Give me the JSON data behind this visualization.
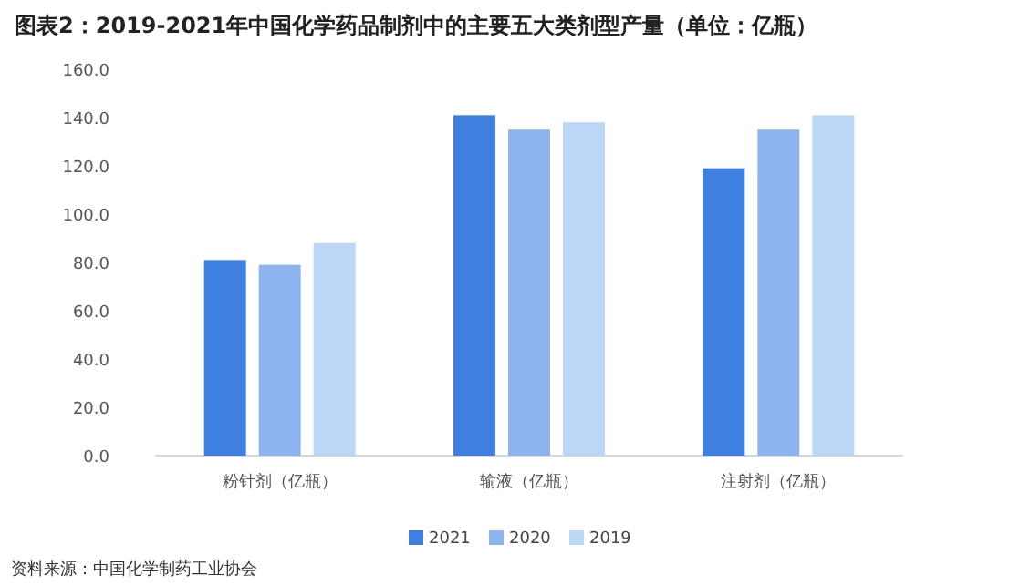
{
  "chart_data": {
    "type": "bar",
    "title": "图表2：2019-2021年中国化学药品制剂中的主要五大类剂型产量（单位：亿瓶）",
    "categories": [
      "粉针剂（亿瓶）",
      "输液（亿瓶）",
      "注射剂（亿瓶）"
    ],
    "series": [
      {
        "name": "2021",
        "color": "#3f7fdf",
        "values": [
          81,
          141,
          119
        ]
      },
      {
        "name": "2020",
        "color": "#8db4ee",
        "values": [
          79,
          135,
          135
        ]
      },
      {
        "name": "2019",
        "color": "#bcd6f8",
        "values": [
          88,
          138,
          141
        ]
      }
    ],
    "ylim": [
      0,
      160
    ],
    "yticks": [
      {
        "value": 0,
        "label": "0.0"
      },
      {
        "value": 20,
        "label": "20.0"
      },
      {
        "value": 40,
        "label": "40.0"
      },
      {
        "value": 60,
        "label": "60.0"
      },
      {
        "value": 80,
        "label": "80.0"
      },
      {
        "value": 100,
        "label": "100.0"
      },
      {
        "value": 120,
        "label": "120.0"
      },
      {
        "value": 140,
        "label": "140.0"
      },
      {
        "value": 160,
        "label": "160.0"
      }
    ],
    "grid": false,
    "legend": "bottom",
    "annotations": [
      "资料来源：中国化学制药工业协会"
    ]
  }
}
